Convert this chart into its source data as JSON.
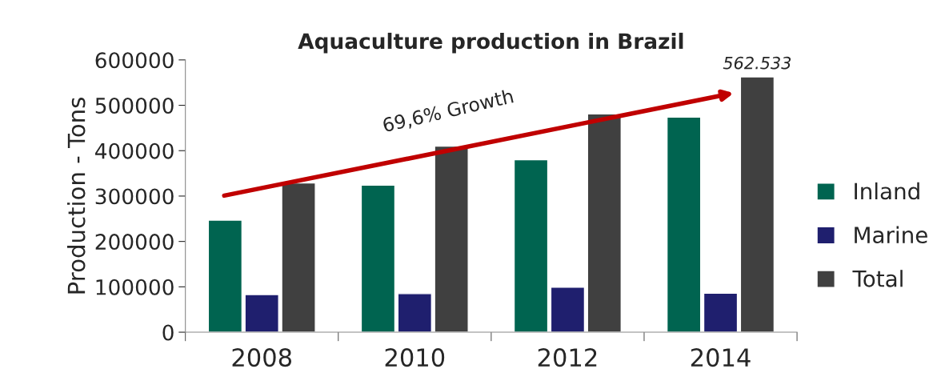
{
  "chart_data": {
    "type": "bar",
    "title": "Aquaculture production in Brazil",
    "ylabel": "Production - Tons",
    "categories": [
      "2008",
      "2010",
      "2012",
      "2014"
    ],
    "series": [
      {
        "name": "Inland",
        "color": "#006450",
        "values": [
          247000,
          324000,
          380000,
          474000
        ]
      },
      {
        "name": "Marine",
        "color": "#1f1f6e",
        "values": [
          83000,
          85000,
          99000,
          86000
        ]
      },
      {
        "name": "Total",
        "color": "#404040",
        "values": [
          329000,
          410000,
          481000,
          562533
        ],
        "value_labels": [
          null,
          null,
          null,
          "562.533"
        ]
      }
    ],
    "ylim": [
      0,
      600000
    ],
    "yticks": [
      0,
      100000,
      200000,
      300000,
      400000,
      500000,
      600000
    ],
    "annotations": [
      "69,6% Growth"
    ],
    "legend": "right",
    "grid": false
  }
}
